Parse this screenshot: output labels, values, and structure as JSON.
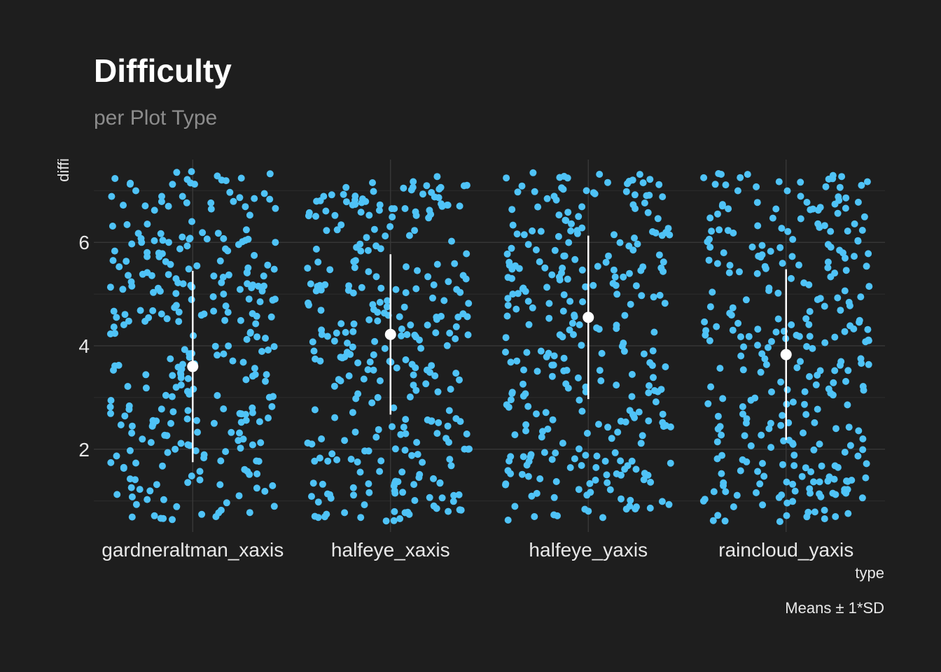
{
  "chart_data": {
    "type": "scatter",
    "title": "Difficulty",
    "subtitle": "per Plot Type",
    "xlabel": "type",
    "ylabel": "diffi",
    "caption": "Means ± 1*SD",
    "categories": [
      "gardneraltman_xaxis",
      "halfeye_xaxis",
      "halfeye_yaxis",
      "raincloud_yaxis"
    ],
    "ylim": [
      0.4,
      7.6
    ],
    "yticks": [
      2,
      4,
      6
    ],
    "grid": true,
    "point_color": "#4fc3f7",
    "summary_color": "#ffffff",
    "background": "#1e1e1e",
    "summary": [
      {
        "category": "gardneraltman_xaxis",
        "mean": 3.6,
        "sd": 1.85
      },
      {
        "category": "halfeye_xaxis",
        "mean": 4.22,
        "sd": 1.55
      },
      {
        "category": "halfeye_yaxis",
        "mean": 4.55,
        "sd": 1.58
      },
      {
        "category": "raincloud_yaxis",
        "mean": 3.83,
        "sd": 1.65
      }
    ],
    "jitter_points": [
      {
        "category": "gardneraltman_xaxis",
        "n": 300,
        "y_range": [
          0.6,
          7.4
        ]
      },
      {
        "category": "halfeye_xaxis",
        "n": 300,
        "y_range": [
          0.6,
          7.3
        ]
      },
      {
        "category": "halfeye_yaxis",
        "n": 300,
        "y_range": [
          0.6,
          7.35
        ]
      },
      {
        "category": "raincloud_yaxis",
        "n": 300,
        "y_range": [
          0.6,
          7.4
        ]
      }
    ]
  }
}
